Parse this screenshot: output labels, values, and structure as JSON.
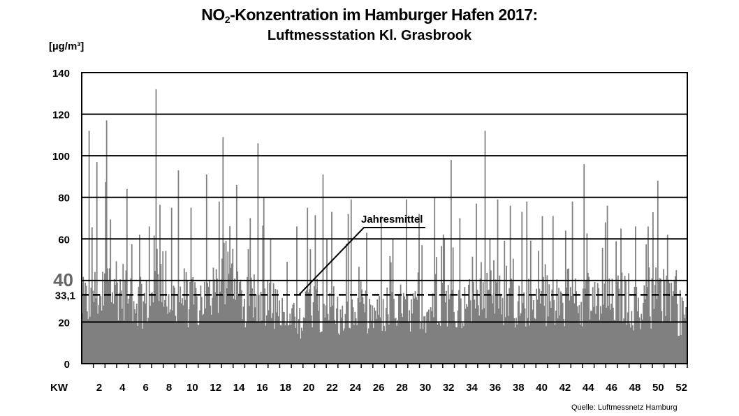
{
  "title_part1": "NO",
  "title_sub": "2",
  "title_part2": "-Konzentration im Hamburger Hafen 2017:",
  "subtitle": "Luftmessstation Kl. Grasbrook",
  "unit_label": "[µg/m³]",
  "source": "Quelle: Luftmessnetz Hamburg",
  "colors": {
    "bars": "#808080",
    "grid": "#000000",
    "mean_line": "#000000"
  },
  "chart_data": {
    "type": "bar",
    "title": "NO2-Konzentration im Hamburger Hafen 2017: Luftmessstation Kl. Grasbrook",
    "ylabel": "[µg/m³]",
    "xlabel": "KW",
    "ylim": [
      0,
      140
    ],
    "yticks": [
      0,
      20,
      40,
      60,
      80,
      100,
      120,
      140
    ],
    "highlight_tick": "40",
    "xlim_weeks": [
      0.5,
      52.5
    ],
    "xticks": [
      "2",
      "4",
      "6",
      "8",
      "10",
      "12",
      "14",
      "16",
      "18",
      "20",
      "22",
      "24",
      "26",
      "28",
      "30",
      "32",
      "34",
      "36",
      "38",
      "40",
      "42",
      "44",
      "46",
      "48",
      "50",
      "52"
    ],
    "grid": true,
    "mean": {
      "label": "Jahresmittel",
      "value": 33.1,
      "tick_label": "33,1"
    },
    "weekly_mean_estimate": [
      28,
      32,
      48,
      34,
      30,
      28,
      42,
      30,
      32,
      28,
      30,
      35,
      45,
      30,
      28,
      30,
      25,
      18,
      20,
      28,
      25,
      24,
      20,
      22,
      24,
      22,
      24,
      26,
      25,
      24,
      30,
      28,
      26,
      28,
      30,
      34,
      28,
      26,
      28,
      30,
      28,
      26,
      30,
      32,
      28,
      28,
      30,
      26,
      28,
      32,
      30,
      22
    ],
    "weekly_max_estimate": [
      112,
      97,
      117,
      84,
      62,
      66,
      132,
      75,
      93,
      75,
      91,
      78,
      109,
      86,
      70,
      106,
      60,
      49,
      66,
      75,
      91,
      73,
      72,
      79,
      63,
      71,
      60,
      79,
      72,
      57,
      80,
      98,
      70,
      77,
      112,
      79,
      76,
      73,
      78,
      71,
      71,
      64,
      78,
      96,
      68,
      76,
      65,
      66,
      66,
      88,
      62,
      45
    ]
  }
}
